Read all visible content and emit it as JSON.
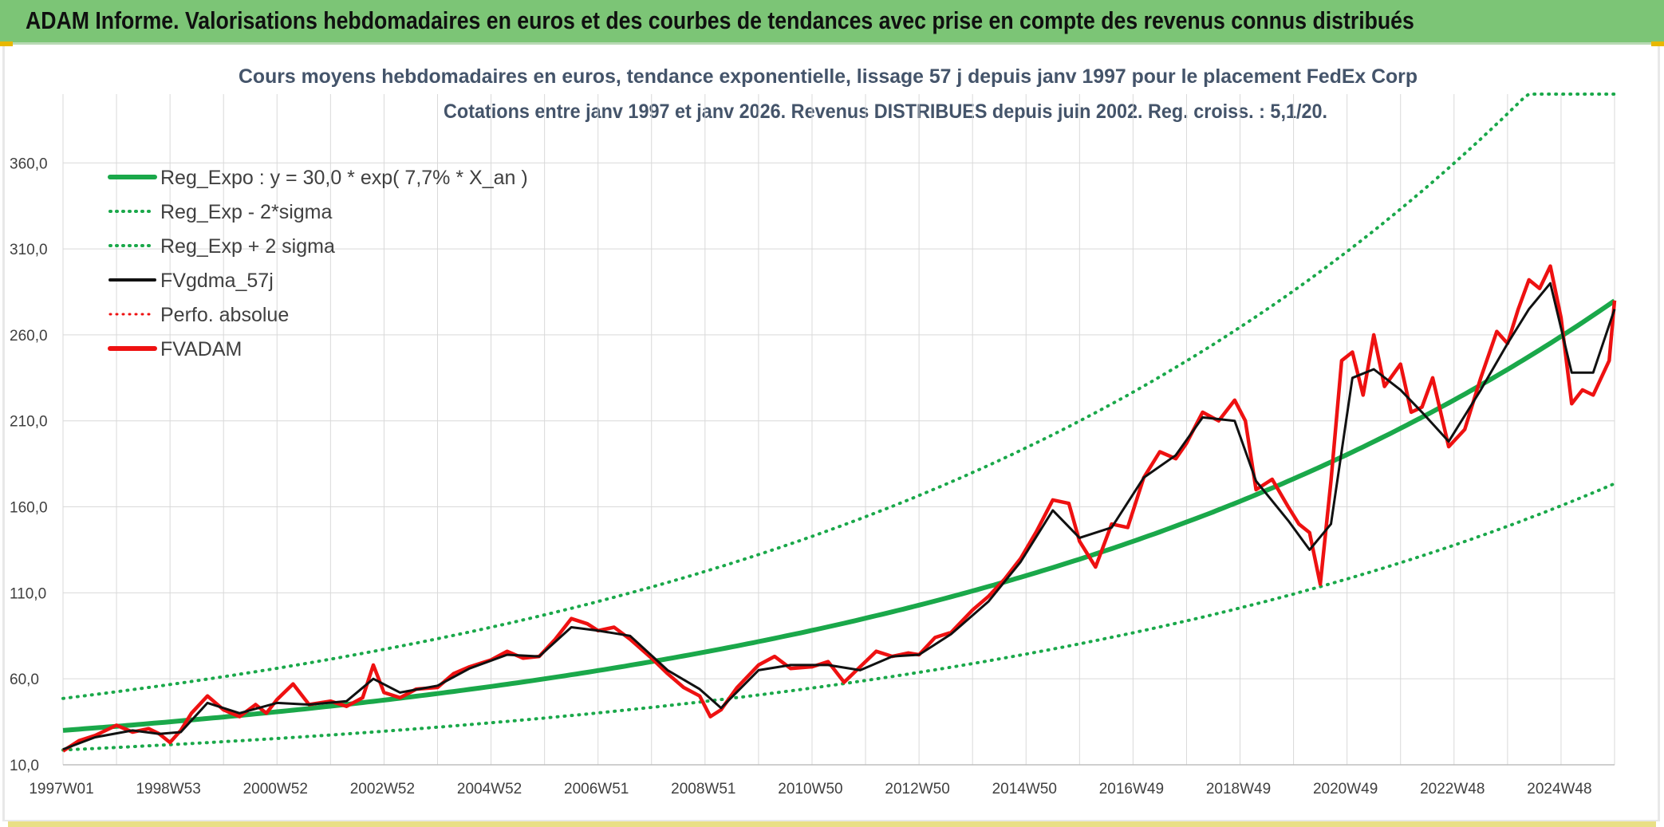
{
  "header": {
    "title": "ADAM Informe. Valorisations hebdomadaires en euros et des courbes de tendances avec prise en compte des revenus connus distribués"
  },
  "colors": {
    "header_bg": "#7cc576",
    "trend_green": "#1aa84a",
    "series_red": "#ee1111",
    "smooth_black": "#111111",
    "grid": "#d9d9d9"
  },
  "chart_data": {
    "type": "line",
    "title": "Cours moyens hebdomadaires en euros, tendance exponentielle, lissage 57 j depuis janv 1997 pour le placement FedEx Corp",
    "subtitle": "Cotations entre janv 1997 et janv 2026. Revenus DISTRIBUES depuis juin 2002. Reg. croiss. : 5,1/20.",
    "xlabel": "",
    "ylabel": "",
    "ylim": [
      10,
      400
    ],
    "y_ticks": [
      "10,0",
      "60,0",
      "110,0",
      "160,0",
      "210,0",
      "260,0",
      "310,0",
      "360,0"
    ],
    "x_range": [
      1997.0,
      2026.0
    ],
    "x_ticks": [
      {
        "label": "1997W01",
        "year": 1997.0
      },
      {
        "label": "1998W53",
        "year": 1999.0
      },
      {
        "label": "2000W52",
        "year": 2001.0
      },
      {
        "label": "2002W52",
        "year": 2003.0
      },
      {
        "label": "2004W52",
        "year": 2005.0
      },
      {
        "label": "2006W51",
        "year": 2007.0
      },
      {
        "label": "2008W51",
        "year": 2009.0
      },
      {
        "label": "2010W50",
        "year": 2011.0
      },
      {
        "label": "2012W50",
        "year": 2013.0
      },
      {
        "label": "2014W50",
        "year": 2015.0
      },
      {
        "label": "2016W49",
        "year": 2017.0
      },
      {
        "label": "2018W49",
        "year": 2019.0
      },
      {
        "label": "2020W49",
        "year": 2021.0
      },
      {
        "label": "2022W48",
        "year": 2023.0
      },
      {
        "label": "2024W48",
        "year": 2025.0
      }
    ],
    "legend": [
      {
        "label": "Reg_Expo : y = 30,0 * exp( 7,7% *  X_an )",
        "color": "#1aa84a",
        "style": "solid",
        "width": 6
      },
      {
        "label": "Reg_Exp - 2*sigma",
        "color": "#1aa84a",
        "style": "dotted",
        "width": 4
      },
      {
        "label": "Reg_Exp + 2 sigma",
        "color": "#1aa84a",
        "style": "dotted",
        "width": 4
      },
      {
        "label": "FVgdma_57j",
        "color": "#111111",
        "style": "solid",
        "width": 4
      },
      {
        "label": "Perfo. absolue",
        "color": "#ee1111",
        "style": "dotted",
        "width": 3
      },
      {
        "label": "FVADAM",
        "color": "#ee1111",
        "style": "solid",
        "width": 6
      }
    ],
    "trend": {
      "a": 30.0,
      "rate": 0.077,
      "lower_factor": 0.62,
      "upper_factor": 1.62,
      "cap": 400
    },
    "series": [
      {
        "name": "FVADAM",
        "x": [
          1997.0,
          1997.3,
          1997.6,
          1998.0,
          1998.3,
          1998.6,
          1998.8,
          1999.0,
          1999.2,
          1999.4,
          1999.7,
          2000.0,
          2000.3,
          2000.6,
          2000.8,
          2001.0,
          2001.3,
          2001.6,
          2002.0,
          2002.3,
          2002.6,
          2002.8,
          2003.0,
          2003.3,
          2003.6,
          2004.0,
          2004.3,
          2004.6,
          2005.0,
          2005.3,
          2005.6,
          2005.9,
          2006.2,
          2006.5,
          2006.8,
          2007.0,
          2007.3,
          2007.6,
          2008.0,
          2008.3,
          2008.6,
          2008.9,
          2009.1,
          2009.3,
          2009.6,
          2010.0,
          2010.3,
          2010.6,
          2011.0,
          2011.3,
          2011.6,
          2011.9,
          2012.2,
          2012.5,
          2012.8,
          2013.0,
          2013.3,
          2013.6,
          2014.0,
          2014.3,
          2014.6,
          2014.9,
          2015.2,
          2015.5,
          2015.8,
          2016.0,
          2016.3,
          2016.6,
          2016.9,
          2017.2,
          2017.5,
          2017.8,
          2018.0,
          2018.3,
          2018.6,
          2018.9,
          2019.1,
          2019.3,
          2019.6,
          2019.9,
          2020.1,
          2020.3,
          2020.5,
          2020.7,
          2020.9,
          2021.1,
          2021.3,
          2021.5,
          2021.7,
          2022.0,
          2022.2,
          2022.4,
          2022.6,
          2022.9,
          2023.2,
          2023.5,
          2023.8,
          2024.0,
          2024.2,
          2024.4,
          2024.6,
          2024.8,
          2025.0,
          2025.2,
          2025.4,
          2025.6,
          2025.9,
          2026.0
        ],
        "values": [
          18,
          24,
          27,
          33,
          29,
          31,
          28,
          23,
          30,
          40,
          50,
          42,
          38,
          45,
          40,
          48,
          57,
          45,
          47,
          44,
          49,
          68,
          52,
          49,
          54,
          55,
          63,
          67,
          71,
          76,
          72,
          73,
          83,
          95,
          92,
          88,
          90,
          83,
          72,
          63,
          55,
          50,
          38,
          42,
          55,
          68,
          73,
          66,
          67,
          70,
          58,
          67,
          76,
          73,
          75,
          74,
          84,
          87,
          100,
          108,
          118,
          130,
          146,
          164,
          162,
          140,
          125,
          150,
          148,
          177,
          192,
          188,
          197,
          215,
          210,
          222,
          210,
          170,
          176,
          160,
          150,
          145,
          115,
          175,
          245,
          250,
          225,
          260,
          230,
          243,
          215,
          218,
          235,
          195,
          205,
          235,
          262,
          255,
          275,
          292,
          287,
          300,
          270,
          220,
          228,
          225,
          245,
          280
        ],
        "color": "#ee1111"
      },
      {
        "name": "FVgdma_57j",
        "x": [
          1997.0,
          1997.6,
          1998.3,
          1998.8,
          1999.2,
          1999.7,
          2000.3,
          2001.0,
          2001.6,
          2002.3,
          2002.8,
          2003.3,
          2004.0,
          2004.6,
          2005.3,
          2005.9,
          2006.5,
          2007.0,
          2007.6,
          2008.3,
          2008.9,
          2009.3,
          2010.0,
          2010.6,
          2011.3,
          2011.9,
          2012.5,
          2013.0,
          2013.6,
          2014.3,
          2014.9,
          2015.5,
          2016.0,
          2016.6,
          2017.2,
          2017.8,
          2018.3,
          2018.9,
          2019.3,
          2019.9,
          2020.3,
          2020.7,
          2021.1,
          2021.5,
          2022.0,
          2022.4,
          2022.9,
          2023.5,
          2024.0,
          2024.4,
          2024.8,
          2025.2,
          2025.6,
          2026.0
        ],
        "values": [
          19,
          26,
          30,
          28,
          29,
          46,
          40,
          46,
          45,
          47,
          60,
          52,
          56,
          66,
          74,
          73,
          90,
          88,
          85,
          65,
          54,
          43,
          65,
          68,
          68,
          65,
          73,
          74,
          86,
          105,
          128,
          158,
          142,
          148,
          177,
          190,
          212,
          210,
          175,
          152,
          135,
          150,
          235,
          240,
          228,
          215,
          198,
          228,
          255,
          275,
          290,
          238,
          238,
          275
        ],
        "color": "#111111"
      }
    ]
  }
}
